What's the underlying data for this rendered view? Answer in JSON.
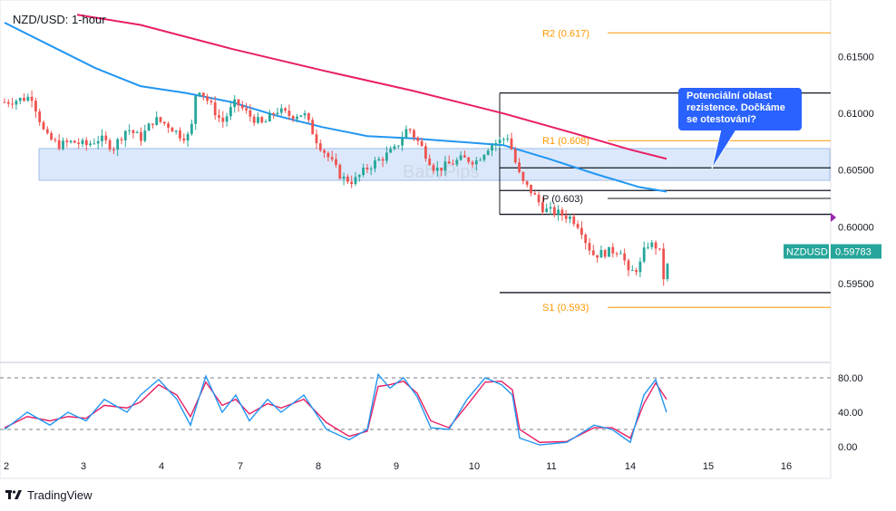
{
  "title": "NZD/USD: 1-hour",
  "branding": {
    "tradingview": "TradingView",
    "watermark": "BabyPips"
  },
  "colors": {
    "up": "#26a69a",
    "down": "#ef5350",
    "ma_fast": "#2196f3",
    "ma_slow": "#e91e63",
    "pivot_orange": "#ff9800",
    "zone_fill": "#dbe8fb",
    "zone_border": "#9fbde6",
    "callout": "#2962ff",
    "stoch_k": "#2196f3",
    "stoch_d": "#e91e63",
    "price_label": "#26a69a"
  },
  "callout": {
    "text": "Potenciální oblast rezistence. Dočkáme se otestování?"
  },
  "chart_data": [
    {
      "type": "candlestick",
      "pair": "NZDUSD",
      "timeframe": "1-hour",
      "last_price": "0.59783",
      "x_ticks": [
        "2",
        "3",
        "4",
        "7",
        "8",
        "9",
        "10",
        "11",
        "14",
        "15",
        "16"
      ],
      "y_ticks": [
        "0.61500",
        "0.61000",
        "0.60500",
        "0.60000",
        "0.59500"
      ],
      "ylim": [
        0.5912,
        0.6187
      ],
      "pivot_levels": [
        {
          "name": "R2",
          "label": "R2 (0.617)",
          "value": 0.6171
        },
        {
          "name": "R1",
          "label": "R1 (0.608)",
          "value": 0.6076
        },
        {
          "name": "P",
          "label": "P (0.603)",
          "value": 0.6025
        },
        {
          "name": "S1",
          "label": "S1 (0.593)",
          "value": 0.5929
        }
      ],
      "horizontal_lines": [
        0.6118,
        0.6052,
        0.6032,
        0.6011,
        0.5942
      ],
      "resistance_zone": [
        0.6041,
        0.6069
      ],
      "ohlc_path": [
        {
          "x": 0,
          "c": 0.611
        },
        {
          "x": 15,
          "c": 0.6112
        },
        {
          "x": 30,
          "c": 0.6115
        },
        {
          "x": 45,
          "c": 0.608
        },
        {
          "x": 60,
          "c": 0.6072
        },
        {
          "x": 75,
          "c": 0.6075
        },
        {
          "x": 90,
          "c": 0.6072
        },
        {
          "x": 105,
          "c": 0.6078
        },
        {
          "x": 120,
          "c": 0.607
        },
        {
          "x": 135,
          "c": 0.6087
        },
        {
          "x": 150,
          "c": 0.6078
        },
        {
          "x": 165,
          "c": 0.6095
        },
        {
          "x": 180,
          "c": 0.609
        },
        {
          "x": 195,
          "c": 0.608
        },
        {
          "x": 205,
          "c": 0.608
        },
        {
          "x": 212,
          "c": 0.6125
        },
        {
          "x": 225,
          "c": 0.611
        },
        {
          "x": 240,
          "c": 0.6092
        },
        {
          "x": 255,
          "c": 0.611
        },
        {
          "x": 270,
          "c": 0.6098
        },
        {
          "x": 285,
          "c": 0.609
        },
        {
          "x": 300,
          "c": 0.6103
        },
        {
          "x": 315,
          "c": 0.6098
        },
        {
          "x": 330,
          "c": 0.61
        },
        {
          "x": 345,
          "c": 0.6075
        },
        {
          "x": 360,
          "c": 0.6058
        },
        {
          "x": 372,
          "c": 0.6043
        },
        {
          "x": 385,
          "c": 0.604
        },
        {
          "x": 400,
          "c": 0.6052
        },
        {
          "x": 415,
          "c": 0.606
        },
        {
          "x": 430,
          "c": 0.6068
        },
        {
          "x": 445,
          "c": 0.6088
        },
        {
          "x": 460,
          "c": 0.607
        },
        {
          "x": 475,
          "c": 0.605
        },
        {
          "x": 490,
          "c": 0.6055
        },
        {
          "x": 505,
          "c": 0.606
        },
        {
          "x": 520,
          "c": 0.6058
        },
        {
          "x": 535,
          "c": 0.6072
        },
        {
          "x": 545,
          "c": 0.6075
        },
        {
          "x": 555,
          "c": 0.608
        },
        {
          "x": 562,
          "c": 0.606
        },
        {
          "x": 570,
          "c": 0.604
        },
        {
          "x": 580,
          "c": 0.6032
        },
        {
          "x": 595,
          "c": 0.6015
        },
        {
          "x": 610,
          "c": 0.6012
        },
        {
          "x": 625,
          "c": 0.6008
        },
        {
          "x": 635,
          "c": 0.6
        },
        {
          "x": 642,
          "c": 0.5985
        },
        {
          "x": 650,
          "c": 0.5975
        },
        {
          "x": 665,
          "c": 0.5978
        },
        {
          "x": 680,
          "c": 0.598
        },
        {
          "x": 688,
          "c": 0.5958
        },
        {
          "x": 700,
          "c": 0.5965
        },
        {
          "x": 708,
          "c": 0.5985
        },
        {
          "x": 718,
          "c": 0.5983
        },
        {
          "x": 724,
          "c": 0.5975
        },
        {
          "x": 728,
          "c": 0.5946
        },
        {
          "x": 733,
          "c": 0.5978
        }
      ],
      "ma_fast": [
        {
          "x": 0,
          "v": 0.618
        },
        {
          "x": 50,
          "v": 0.616
        },
        {
          "x": 100,
          "v": 0.614
        },
        {
          "x": 150,
          "v": 0.6124
        },
        {
          "x": 200,
          "v": 0.6118
        },
        {
          "x": 250,
          "v": 0.611
        },
        {
          "x": 300,
          "v": 0.6098
        },
        {
          "x": 350,
          "v": 0.6088
        },
        {
          "x": 400,
          "v": 0.608
        },
        {
          "x": 450,
          "v": 0.6078
        },
        {
          "x": 500,
          "v": 0.6075
        },
        {
          "x": 550,
          "v": 0.6072
        },
        {
          "x": 600,
          "v": 0.606
        },
        {
          "x": 650,
          "v": 0.6047
        },
        {
          "x": 700,
          "v": 0.6035
        },
        {
          "x": 730,
          "v": 0.6031
        }
      ],
      "ma_slow": [
        {
          "x": 80,
          "v": 0.6187
        },
        {
          "x": 150,
          "v": 0.6178
        },
        {
          "x": 250,
          "v": 0.6157
        },
        {
          "x": 350,
          "v": 0.6138
        },
        {
          "x": 450,
          "v": 0.612
        },
        {
          "x": 550,
          "v": 0.61
        },
        {
          "x": 630,
          "v": 0.6082
        },
        {
          "x": 690,
          "v": 0.6068
        },
        {
          "x": 730,
          "v": 0.606
        }
      ]
    },
    {
      "type": "line",
      "indicator": "stochastic",
      "y_ticks": [
        "80.00",
        "40.00",
        "0.00"
      ],
      "ylim": [
        -5,
        95
      ],
      "levels": [
        80,
        20
      ],
      "k": [
        {
          "x": 0,
          "v": 20
        },
        {
          "x": 25,
          "v": 40
        },
        {
          "x": 50,
          "v": 25
        },
        {
          "x": 70,
          "v": 40
        },
        {
          "x": 90,
          "v": 30
        },
        {
          "x": 110,
          "v": 55
        },
        {
          "x": 135,
          "v": 40
        },
        {
          "x": 150,
          "v": 60
        },
        {
          "x": 170,
          "v": 78
        },
        {
          "x": 190,
          "v": 55
        },
        {
          "x": 205,
          "v": 25
        },
        {
          "x": 222,
          "v": 82
        },
        {
          "x": 240,
          "v": 40
        },
        {
          "x": 255,
          "v": 60
        },
        {
          "x": 270,
          "v": 30
        },
        {
          "x": 290,
          "v": 55
        },
        {
          "x": 305,
          "v": 40
        },
        {
          "x": 330,
          "v": 60
        },
        {
          "x": 355,
          "v": 20
        },
        {
          "x": 380,
          "v": 8
        },
        {
          "x": 400,
          "v": 20
        },
        {
          "x": 412,
          "v": 84
        },
        {
          "x": 425,
          "v": 68
        },
        {
          "x": 440,
          "v": 80
        },
        {
          "x": 455,
          "v": 58
        },
        {
          "x": 470,
          "v": 22
        },
        {
          "x": 490,
          "v": 20
        },
        {
          "x": 510,
          "v": 55
        },
        {
          "x": 530,
          "v": 80
        },
        {
          "x": 548,
          "v": 72
        },
        {
          "x": 560,
          "v": 60
        },
        {
          "x": 568,
          "v": 10
        },
        {
          "x": 590,
          "v": 2
        },
        {
          "x": 620,
          "v": 5
        },
        {
          "x": 650,
          "v": 25
        },
        {
          "x": 670,
          "v": 20
        },
        {
          "x": 690,
          "v": 5
        },
        {
          "x": 705,
          "v": 60
        },
        {
          "x": 718,
          "v": 78
        },
        {
          "x": 730,
          "v": 40
        }
      ],
      "d": [
        {
          "x": 0,
          "v": 22
        },
        {
          "x": 25,
          "v": 35
        },
        {
          "x": 50,
          "v": 30
        },
        {
          "x": 70,
          "v": 35
        },
        {
          "x": 90,
          "v": 33
        },
        {
          "x": 110,
          "v": 48
        },
        {
          "x": 135,
          "v": 45
        },
        {
          "x": 150,
          "v": 52
        },
        {
          "x": 170,
          "v": 72
        },
        {
          "x": 190,
          "v": 60
        },
        {
          "x": 205,
          "v": 35
        },
        {
          "x": 222,
          "v": 75
        },
        {
          "x": 240,
          "v": 48
        },
        {
          "x": 255,
          "v": 55
        },
        {
          "x": 270,
          "v": 38
        },
        {
          "x": 290,
          "v": 50
        },
        {
          "x": 305,
          "v": 45
        },
        {
          "x": 330,
          "v": 55
        },
        {
          "x": 355,
          "v": 28
        },
        {
          "x": 380,
          "v": 12
        },
        {
          "x": 400,
          "v": 18
        },
        {
          "x": 412,
          "v": 70
        },
        {
          "x": 425,
          "v": 72
        },
        {
          "x": 440,
          "v": 76
        },
        {
          "x": 455,
          "v": 62
        },
        {
          "x": 470,
          "v": 30
        },
        {
          "x": 490,
          "v": 22
        },
        {
          "x": 510,
          "v": 48
        },
        {
          "x": 530,
          "v": 75
        },
        {
          "x": 548,
          "v": 76
        },
        {
          "x": 560,
          "v": 66
        },
        {
          "x": 568,
          "v": 20
        },
        {
          "x": 590,
          "v": 5
        },
        {
          "x": 620,
          "v": 6
        },
        {
          "x": 650,
          "v": 22
        },
        {
          "x": 670,
          "v": 22
        },
        {
          "x": 690,
          "v": 10
        },
        {
          "x": 705,
          "v": 50
        },
        {
          "x": 718,
          "v": 74
        },
        {
          "x": 730,
          "v": 55
        }
      ]
    }
  ]
}
